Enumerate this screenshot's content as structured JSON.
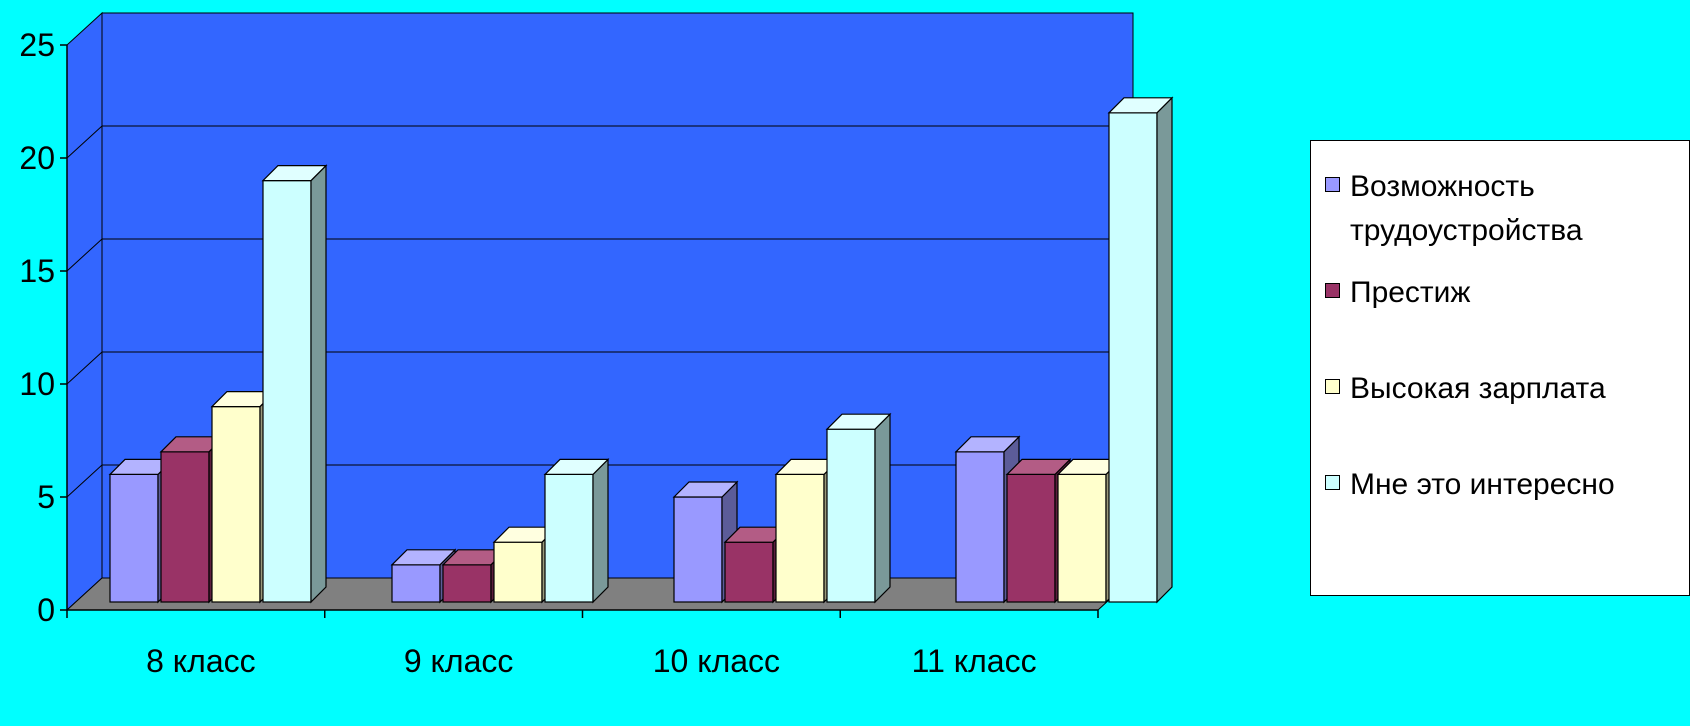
{
  "chart_data": {
    "type": "bar",
    "categories": [
      "8 класс",
      "9 класс",
      "10 класс",
      "11 класс"
    ],
    "series": [
      {
        "name": "Возможность трудоустройства",
        "values": [
          6,
          2,
          5,
          7
        ]
      },
      {
        "name": "Престиж",
        "values": [
          7,
          2,
          3,
          6
        ]
      },
      {
        "name": "Высокая зарплата",
        "values": [
          9,
          3,
          6,
          6
        ]
      },
      {
        "name": "Мне это интересно",
        "values": [
          19,
          6,
          8,
          22
        ]
      }
    ],
    "colors": [
      "#9999ff",
      "#993366",
      "#ffffcc",
      "#ccffff"
    ],
    "side_colors": [
      "#5c5c99",
      "#5c1f3d",
      "#99997a",
      "#7a9999"
    ],
    "top_colors": [
      "#b3b3ff",
      "#b35c85",
      "#ffffe0",
      "#e0ffff"
    ],
    "y_ticks": [
      "0",
      "5",
      "10",
      "15",
      "20",
      "25"
    ],
    "ylim": [
      0,
      25
    ],
    "title": "",
    "xlabel": "",
    "ylabel": "",
    "grid": true,
    "legend_position": "right",
    "wall_color": "#3366ff",
    "floor_color": "#808080",
    "background_color": "#00ffff",
    "style": "3d-clustered-column"
  }
}
